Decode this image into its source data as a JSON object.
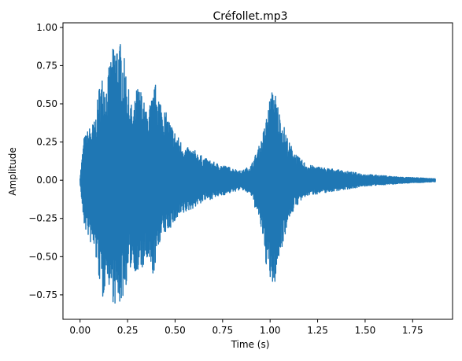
{
  "chart_data": {
    "type": "line",
    "title": "Créfollet.mp3",
    "xlabel": "Time (s)",
    "ylabel": "Amplitude",
    "xlim": [
      -0.09,
      1.96
    ],
    "ylim": [
      -0.91,
      1.03
    ],
    "x_ticks": [
      0.0,
      0.25,
      0.5,
      0.75,
      1.0,
      1.25,
      1.5,
      1.75
    ],
    "x_tick_labels": [
      "0.00",
      "0.25",
      "0.50",
      "0.75",
      "1.00",
      "1.25",
      "1.50",
      "1.75"
    ],
    "y_ticks": [
      -0.75,
      -0.5,
      -0.25,
      0.0,
      0.25,
      0.5,
      0.75,
      1.0
    ],
    "y_tick_labels": [
      "−0.75",
      "−0.50",
      "−0.25",
      "0.00",
      "0.25",
      "0.50",
      "0.75",
      "1.00"
    ],
    "grid": false,
    "series_color": "#1f77b4",
    "series": [
      {
        "x": [
          0.0,
          0.02,
          0.05,
          0.08,
          0.1,
          0.12,
          0.14,
          0.16,
          0.18,
          0.2,
          0.22,
          0.24,
          0.26,
          0.28,
          0.3,
          0.32,
          0.35,
          0.38,
          0.4,
          0.42,
          0.45,
          0.5,
          0.55,
          0.6,
          0.65,
          0.7,
          0.75,
          0.8,
          0.85,
          0.9,
          0.95,
          0.97,
          1.0,
          1.02,
          1.05,
          1.1,
          1.15,
          1.2,
          1.3,
          1.4,
          1.5,
          1.6,
          1.7,
          1.8,
          1.87
        ],
        "upper": [
          0.02,
          0.28,
          0.35,
          0.4,
          0.62,
          0.7,
          0.65,
          0.8,
          0.9,
          0.94,
          0.88,
          0.75,
          0.55,
          0.45,
          0.62,
          0.6,
          0.45,
          0.55,
          0.65,
          0.55,
          0.45,
          0.32,
          0.22,
          0.2,
          0.15,
          0.12,
          0.1,
          0.08,
          0.06,
          0.1,
          0.25,
          0.35,
          0.55,
          0.62,
          0.45,
          0.25,
          0.15,
          0.1,
          0.08,
          0.06,
          0.04,
          0.03,
          0.02,
          0.015,
          0.01
        ],
        "lower": [
          -0.02,
          -0.3,
          -0.4,
          -0.5,
          -0.65,
          -0.8,
          -0.6,
          -0.75,
          -0.82,
          -0.84,
          -0.8,
          -0.7,
          -0.6,
          -0.55,
          -0.65,
          -0.6,
          -0.55,
          -0.65,
          -0.55,
          -0.4,
          -0.35,
          -0.28,
          -0.22,
          -0.18,
          -0.14,
          -0.12,
          -0.1,
          -0.08,
          -0.06,
          -0.1,
          -0.3,
          -0.5,
          -0.68,
          -0.72,
          -0.5,
          -0.25,
          -0.15,
          -0.1,
          -0.08,
          -0.06,
          -0.04,
          -0.03,
          -0.02,
          -0.015,
          -0.01
        ]
      }
    ]
  }
}
